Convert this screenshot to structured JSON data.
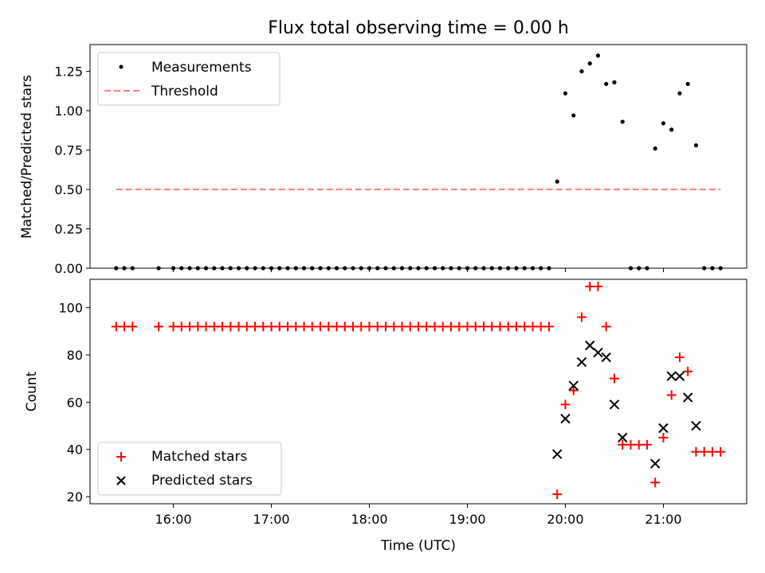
{
  "chart_data": [
    {
      "type": "scatter",
      "title": "Flux total observing time = 0.00 h",
      "xlabel": "",
      "ylabel": "Matched/Predicted stars",
      "ylim": [
        0,
        1.42
      ],
      "yticks": [
        0.0,
        0.25,
        0.5,
        0.75,
        1.0,
        1.25
      ],
      "ytick_labels": [
        "0.00",
        "0.25",
        "0.50",
        "0.75",
        "1.00",
        "1.25"
      ],
      "xlim": [
        "15:09",
        "21:51"
      ],
      "xticks": [
        "16:00",
        "17:00",
        "18:00",
        "19:00",
        "20:00",
        "21:00"
      ],
      "grid": false,
      "legend_position": "top-left",
      "series": [
        {
          "name": "Measurements",
          "marker": "dot",
          "color": "#000000",
          "x": [
            "15:25",
            "15:30",
            "15:35",
            "15:51",
            "16:00",
            "16:05",
            "16:10",
            "16:15",
            "16:20",
            "16:25",
            "16:30",
            "16:35",
            "16:40",
            "16:45",
            "16:50",
            "16:55",
            "17:00",
            "17:05",
            "17:10",
            "17:15",
            "17:20",
            "17:25",
            "17:30",
            "17:35",
            "17:40",
            "17:45",
            "17:50",
            "17:55",
            "18:00",
            "18:05",
            "18:10",
            "18:15",
            "18:20",
            "18:25",
            "18:30",
            "18:35",
            "18:40",
            "18:45",
            "18:50",
            "18:55",
            "19:00",
            "19:05",
            "19:10",
            "19:15",
            "19:20",
            "19:25",
            "19:30",
            "19:35",
            "19:40",
            "19:45",
            "19:50",
            "19:55",
            "20:00",
            "20:05",
            "20:10",
            "20:15",
            "20:20",
            "20:25",
            "20:30",
            "20:35",
            "20:40",
            "20:45",
            "20:50",
            "20:55",
            "21:00",
            "21:05",
            "21:10",
            "21:15",
            "21:20",
            "21:25",
            "21:30",
            "21:35"
          ],
          "y": [
            0,
            0,
            0,
            0,
            0,
            0,
            0,
            0,
            0,
            0,
            0,
            0,
            0,
            0,
            0,
            0,
            0,
            0,
            0,
            0,
            0,
            0,
            0,
            0,
            0,
            0,
            0,
            0,
            0,
            0,
            0,
            0,
            0,
            0,
            0,
            0,
            0,
            0,
            0,
            0,
            0,
            0,
            0,
            0,
            0,
            0,
            0,
            0,
            0,
            0,
            0,
            0.55,
            1.11,
            0.97,
            1.25,
            1.3,
            1.35,
            1.17,
            1.18,
            0.93,
            0,
            0,
            0,
            0.76,
            0.92,
            0.88,
            1.11,
            1.17,
            0.78,
            0,
            0,
            0
          ]
        },
        {
          "name": "Threshold",
          "marker": "dashed-line",
          "color": "#ff7f7f",
          "x": [
            "15:25",
            "21:35"
          ],
          "y": [
            0.5,
            0.5
          ]
        }
      ]
    },
    {
      "type": "scatter",
      "title": "",
      "xlabel": "Time (UTC)",
      "ylabel": "Count",
      "ylim": [
        17,
        112
      ],
      "yticks": [
        20,
        40,
        60,
        80,
        100
      ],
      "ytick_labels": [
        "20",
        "40",
        "60",
        "80",
        "100"
      ],
      "xlim": [
        "15:09",
        "21:51"
      ],
      "xticks": [
        "16:00",
        "17:00",
        "18:00",
        "19:00",
        "20:00",
        "21:00"
      ],
      "xtick_labels": [
        "16:00",
        "17:00",
        "18:00",
        "19:00",
        "20:00",
        "21:00"
      ],
      "grid": false,
      "legend_position": "bottom-left",
      "series": [
        {
          "name": "Matched stars",
          "marker": "plus",
          "color": "#ff0000",
          "x": [
            "15:25",
            "15:30",
            "15:35",
            "15:51",
            "16:00",
            "16:05",
            "16:10",
            "16:15",
            "16:20",
            "16:25",
            "16:30",
            "16:35",
            "16:40",
            "16:45",
            "16:50",
            "16:55",
            "17:00",
            "17:05",
            "17:10",
            "17:15",
            "17:20",
            "17:25",
            "17:30",
            "17:35",
            "17:40",
            "17:45",
            "17:50",
            "17:55",
            "18:00",
            "18:05",
            "18:10",
            "18:15",
            "18:20",
            "18:25",
            "18:30",
            "18:35",
            "18:40",
            "18:45",
            "18:50",
            "18:55",
            "19:00",
            "19:05",
            "19:10",
            "19:15",
            "19:20",
            "19:25",
            "19:30",
            "19:35",
            "19:40",
            "19:45",
            "19:50",
            "19:55",
            "20:00",
            "20:05",
            "20:10",
            "20:15",
            "20:20",
            "20:25",
            "20:30",
            "20:35",
            "20:40",
            "20:45",
            "20:50",
            "20:55",
            "21:00",
            "21:05",
            "21:10",
            "21:15",
            "21:20",
            "21:25",
            "21:30",
            "21:35"
          ],
          "y": [
            92,
            92,
            92,
            92,
            92,
            92,
            92,
            92,
            92,
            92,
            92,
            92,
            92,
            92,
            92,
            92,
            92,
            92,
            92,
            92,
            92,
            92,
            92,
            92,
            92,
            92,
            92,
            92,
            92,
            92,
            92,
            92,
            92,
            92,
            92,
            92,
            92,
            92,
            92,
            92,
            92,
            92,
            92,
            92,
            92,
            92,
            92,
            92,
            92,
            92,
            92,
            21,
            59,
            65,
            96,
            109,
            109,
            92,
            70,
            42,
            42,
            42,
            42,
            26,
            45,
            63,
            79,
            73,
            39,
            39,
            39,
            39
          ]
        },
        {
          "name": "Predicted stars",
          "marker": "x",
          "color": "#000000",
          "x": [
            "19:55",
            "20:00",
            "20:05",
            "20:10",
            "20:15",
            "20:20",
            "20:25",
            "20:30",
            "20:35",
            "20:55",
            "21:00",
            "21:05",
            "21:10",
            "21:15",
            "21:20"
          ],
          "y": [
            38,
            53,
            67,
            77,
            84,
            81,
            79,
            59,
            45,
            34,
            49,
            71,
            71,
            62,
            50
          ]
        }
      ]
    }
  ]
}
